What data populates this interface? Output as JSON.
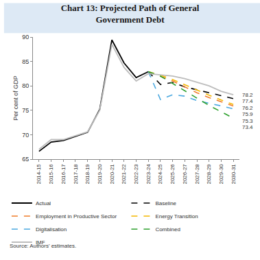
{
  "chart_data": {
    "type": "line",
    "title": "Chart 13: Projected Path of General Government Debt",
    "y_label": "Per cent of GDP",
    "source": "Source: Authors' estimates.",
    "categories": [
      "2014-15",
      "2015-16",
      "2016-17",
      "2017-18",
      "2018-19",
      "2019-20",
      "2020-21",
      "2021-22",
      "2022-23",
      "2023-24",
      "2024-25",
      "2025-26",
      "2026-27",
      "2027-28",
      "2028-29",
      "2029-30",
      "2030-31"
    ],
    "series": [
      {
        "name": "Actual",
        "color": "#000000",
        "line_style": "solid",
        "values": [
          66.6,
          68.5,
          68.8,
          69.6,
          70.5,
          75.2,
          89.4,
          84.7,
          81.7,
          82.9,
          null,
          null,
          null,
          null,
          null,
          null,
          null
        ]
      },
      {
        "name": "Baseline",
        "color": "#000000",
        "line_style": "dash",
        "values": [
          null,
          null,
          null,
          null,
          null,
          null,
          null,
          null,
          null,
          82.9,
          80.3,
          80.7,
          79.8,
          79.2,
          78.6,
          78.0,
          77.4
        ]
      },
      {
        "name": "Employment in Productive Sector",
        "color": "#f07c2a",
        "line_style": "dash",
        "values": [
          null,
          null,
          null,
          null,
          null,
          null,
          null,
          null,
          null,
          82.9,
          82.0,
          81.0,
          79.8,
          78.6,
          77.6,
          76.7,
          75.9
        ]
      },
      {
        "name": "Energy Transition",
        "color": "#f5b800",
        "line_style": "dash",
        "values": [
          null,
          null,
          null,
          null,
          null,
          null,
          null,
          null,
          null,
          82.9,
          82.2,
          81.3,
          80.2,
          79.2,
          78.1,
          77.1,
          76.2
        ]
      },
      {
        "name": "Digitalisation",
        "color": "#4aa8e0",
        "line_style": "dash",
        "values": [
          null,
          null,
          null,
          null,
          null,
          null,
          null,
          null,
          null,
          82.9,
          77.2,
          78.2,
          77.9,
          77.0,
          76.5,
          75.9,
          75.3
        ]
      },
      {
        "name": "Combined",
        "color": "#2ca02c",
        "line_style": "dash",
        "values": [
          null,
          null,
          null,
          null,
          null,
          null,
          null,
          null,
          null,
          82.9,
          82.0,
          80.5,
          79.0,
          77.5,
          76.0,
          74.7,
          73.4
        ]
      },
      {
        "name": "IMF",
        "color": "#bdbdbd",
        "line_style": "solid",
        "values": [
          67.0,
          69.0,
          69.0,
          69.8,
          70.6,
          75.0,
          88.5,
          83.8,
          81.0,
          82.5,
          82.3,
          82.0,
          81.5,
          80.8,
          80.0,
          78.9,
          78.2
        ]
      }
    ],
    "annotations": [
      {
        "text": "78.2",
        "x": "2030-31",
        "y": 78.2
      },
      {
        "text": "77.4",
        "x": "2030-31",
        "y": 77.4
      },
      {
        "text": "76.2",
        "x": "2030-31",
        "y": 76.2
      },
      {
        "text": "75.9",
        "x": "2030-31",
        "y": 75.9
      },
      {
        "text": "75.3",
        "x": "2030-31",
        "y": 75.3
      },
      {
        "text": "73.4",
        "x": "2030-31",
        "y": 73.4
      }
    ],
    "ylim": [
      65,
      90
    ],
    "yticks": [
      65,
      70,
      75,
      80,
      85,
      90
    ],
    "grid": false,
    "legend": "bottom"
  }
}
